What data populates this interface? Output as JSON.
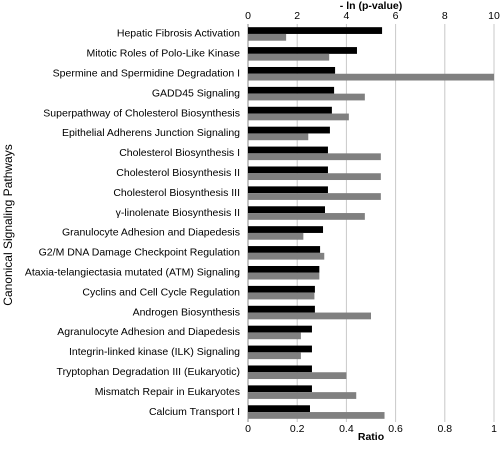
{
  "chart_data": {
    "type": "bar",
    "orientation": "horizontal",
    "y_label": "Canonical Signaling Pathways",
    "x_label": "Ratio",
    "x2_label": "- ln (p-value)",
    "categories": [
      "Hepatic Fibrosis Activation",
      "Mitotic Roles of Polo-Like Kinase",
      "Spermine and Spermidine Degradation I",
      "GADD45 Signaling",
      "Superpathway of Cholesterol Biosynthesis",
      "Epithelial Adherens Junction Signaling",
      "Cholesterol Biosynthesis I",
      "Cholesterol Biosynthesis II",
      "Cholesterol Biosynthesis III",
      "γ-linolenate Biosynthesis II",
      "Granulocyte Adhesion and Diapedesis",
      "G2/M DNA Damage Checkpoint Regulation",
      "Ataxia-telangiectasia mutated (ATM) Signaling",
      "Cyclins and Cell Cycle Regulation",
      "Androgen Biosynthesis",
      "Agranulocyte Adhesion and Diapedesis",
      "Integrin-linked kinase (ILK) Signaling",
      "Tryptophan Degradation III (Eukaryotic)",
      "Mismatch Repair in Eukaryotes",
      "Calcium Transport I"
    ],
    "series": [
      {
        "color": "#000000",
        "axis": "x2",
        "values": [
          5.45,
          4.43,
          3.54,
          3.5,
          3.41,
          3.33,
          3.25,
          3.25,
          3.25,
          3.13,
          3.05,
          2.93,
          2.9,
          2.72,
          2.72,
          2.6,
          2.6,
          2.6,
          2.6,
          2.52
        ]
      },
      {
        "color": "#808080",
        "axis": "x",
        "values": [
          0.155,
          0.33,
          1.0,
          0.475,
          0.41,
          0.245,
          0.54,
          0.54,
          0.54,
          0.475,
          0.225,
          0.31,
          0.29,
          0.27,
          0.5,
          0.215,
          0.215,
          0.4,
          0.44,
          0.555
        ]
      }
    ],
    "xlim": [
      0,
      1
    ],
    "xticks": [
      0,
      0.2,
      0.4,
      0.6,
      0.8,
      1
    ],
    "x2lim": [
      0,
      10
    ],
    "x2ticks": [
      0,
      2,
      4,
      6,
      8,
      10
    ],
    "grid": true
  }
}
